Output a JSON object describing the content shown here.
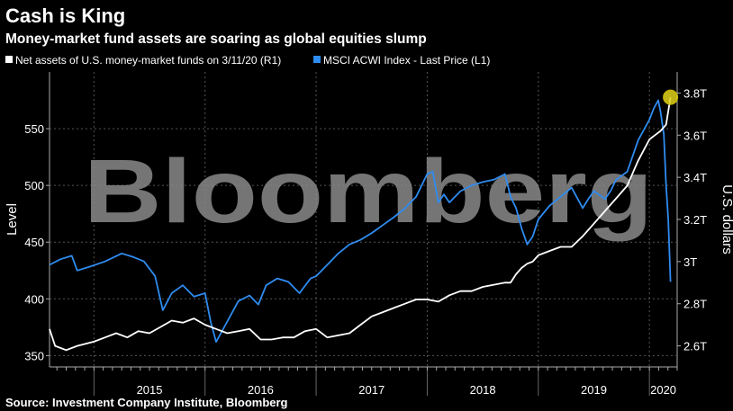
{
  "header": {
    "title": "Cash is King",
    "subtitle": "Money-market fund assets are soaring as global equities slump"
  },
  "watermark": "Bloomberg",
  "source": "Source: Investment Company Institute, Bloomberg",
  "colors": {
    "background": "#000000",
    "msci": "#2f8cf0",
    "mmf": "#ffffff",
    "grid": "#555555",
    "highlight": "#e0d21a"
  },
  "chart_data": {
    "type": "line",
    "legend": [
      {
        "label": "Net assets of U.S. money-market funds on 3/11/20 (R1)",
        "color": "#ffffff"
      },
      {
        "label": "MSCI ACWI Index - Last Price (L1)",
        "color": "#2f8cf0"
      }
    ],
    "legend_position": "top-left",
    "grid": true,
    "x_label": "",
    "x_ticks": [
      "2015",
      "2016",
      "2017",
      "2018",
      "2019",
      "2020"
    ],
    "x_range": [
      2014.6,
      2020.25
    ],
    "y_left": {
      "label": "Level",
      "range": [
        340,
        600
      ],
      "ticks": [
        350,
        400,
        450,
        500,
        550
      ]
    },
    "y_right": {
      "label": "U.S. dollars",
      "range": [
        2.5,
        3.9
      ],
      "tick_values": [
        2.6,
        2.8,
        3.0,
        3.2,
        3.4,
        3.6,
        3.8
      ],
      "tick_labels": [
        "2.6T",
        "2.8T",
        "3T",
        "3.2T",
        "3.4T",
        "3.6T",
        "3.8T"
      ]
    },
    "series": [
      {
        "name": "MSCI ACWI Index - Last Price (L1)",
        "axis": "left",
        "x": [
          2014.6,
          2014.7,
          2014.8,
          2014.85,
          2014.95,
          2015.1,
          2015.25,
          2015.35,
          2015.45,
          2015.55,
          2015.62,
          2015.7,
          2015.8,
          2015.9,
          2016.0,
          2016.05,
          2016.1,
          2016.2,
          2016.3,
          2016.4,
          2016.48,
          2016.55,
          2016.65,
          2016.75,
          2016.85,
          2016.95,
          2017.0,
          2017.1,
          2017.2,
          2017.3,
          2017.4,
          2017.5,
          2017.6,
          2017.7,
          2017.8,
          2017.9,
          2018.0,
          2018.05,
          2018.1,
          2018.15,
          2018.2,
          2018.3,
          2018.4,
          2018.5,
          2018.6,
          2018.7,
          2018.75,
          2018.8,
          2018.85,
          2018.9,
          2018.95,
          2019.0,
          2019.1,
          2019.2,
          2019.3,
          2019.4,
          2019.45,
          2019.5,
          2019.6,
          2019.65,
          2019.7,
          2019.8,
          2019.9,
          2020.0,
          2020.04,
          2020.08,
          2020.1,
          2020.13,
          2020.15,
          2020.17,
          2020.19
        ],
        "y": [
          430,
          435,
          438,
          425,
          428,
          433,
          440,
          437,
          433,
          420,
          390,
          405,
          412,
          402,
          405,
          380,
          362,
          380,
          398,
          403,
          395,
          412,
          418,
          415,
          405,
          418,
          420,
          430,
          440,
          448,
          452,
          458,
          465,
          472,
          480,
          490,
          510,
          512,
          485,
          492,
          485,
          495,
          500,
          503,
          505,
          510,
          490,
          480,
          462,
          448,
          455,
          470,
          482,
          490,
          498,
          480,
          488,
          495,
          488,
          495,
          505,
          512,
          540,
          558,
          568,
          575,
          565,
          545,
          500,
          470,
          415
        ]
      },
      {
        "name": "Net assets of U.S. money-market funds on 3/11/20 (R1)",
        "axis": "right",
        "x": [
          2014.6,
          2014.65,
          2014.75,
          2014.85,
          2015.0,
          2015.1,
          2015.2,
          2015.3,
          2015.4,
          2015.5,
          2015.6,
          2015.7,
          2015.8,
          2015.9,
          2016.0,
          2016.1,
          2016.2,
          2016.3,
          2016.4,
          2016.5,
          2016.6,
          2016.7,
          2016.8,
          2016.9,
          2017.0,
          2017.1,
          2017.2,
          2017.3,
          2017.4,
          2017.5,
          2017.6,
          2017.7,
          2017.8,
          2017.9,
          2018.0,
          2018.1,
          2018.2,
          2018.3,
          2018.4,
          2018.5,
          2018.6,
          2018.7,
          2018.75,
          2018.8,
          2018.85,
          2018.9,
          2018.95,
          2019.0,
          2019.1,
          2019.2,
          2019.3,
          2019.4,
          2019.5,
          2019.6,
          2019.7,
          2019.8,
          2019.9,
          2020.0,
          2020.05,
          2020.1,
          2020.15,
          2020.19
        ],
        "y": [
          2.68,
          2.6,
          2.58,
          2.6,
          2.62,
          2.64,
          2.66,
          2.64,
          2.67,
          2.66,
          2.69,
          2.72,
          2.71,
          2.73,
          2.7,
          2.68,
          2.66,
          2.67,
          2.68,
          2.63,
          2.63,
          2.64,
          2.64,
          2.67,
          2.68,
          2.64,
          2.65,
          2.66,
          2.7,
          2.74,
          2.76,
          2.78,
          2.8,
          2.82,
          2.82,
          2.81,
          2.84,
          2.86,
          2.86,
          2.88,
          2.89,
          2.9,
          2.9,
          2.94,
          2.97,
          2.99,
          3.0,
          3.03,
          3.05,
          3.07,
          3.07,
          3.12,
          3.18,
          3.24,
          3.3,
          3.36,
          3.48,
          3.58,
          3.6,
          3.62,
          3.65,
          3.78
        ]
      }
    ],
    "highlight_point": {
      "series": 1,
      "x": 2020.19,
      "y": 3.78
    }
  }
}
